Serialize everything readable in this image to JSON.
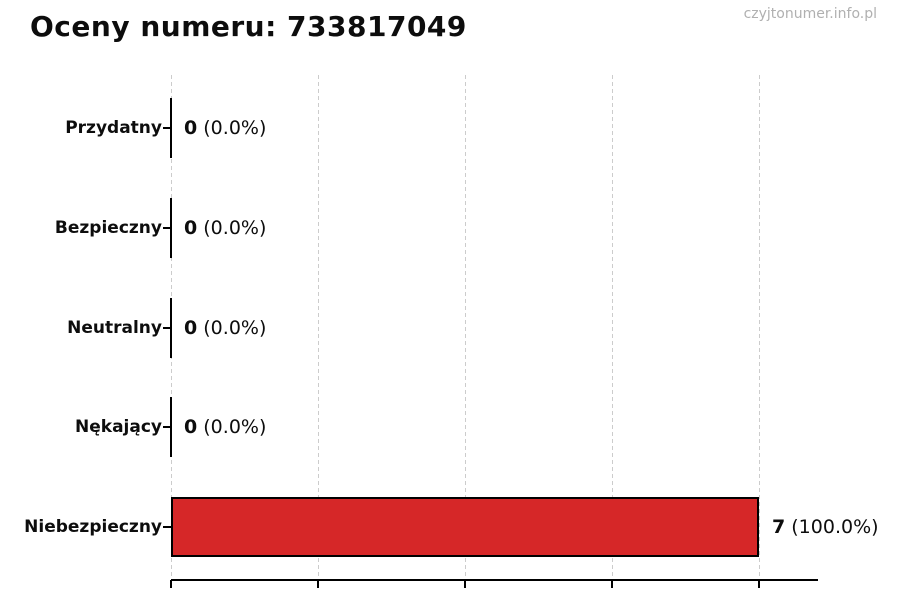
{
  "page": {
    "watermark": "czyjtonumer.info.pl"
  },
  "chart_data": {
    "type": "bar",
    "orientation": "horizontal",
    "title": "Oceny numeru: 733817049",
    "categories": [
      "Przydatny",
      "Bezpieczny",
      "Neutralny",
      "Nękający",
      "Niebezpieczny"
    ],
    "values": [
      0,
      0,
      0,
      0,
      7
    ],
    "percent_labels": [
      "0.0%",
      "0.0%",
      "0.0%",
      "0.0%",
      "100.0%"
    ],
    "value_label_format": "{value} ({percent})",
    "xlabel": "",
    "ylabel": "",
    "xlim": [
      0,
      7.7
    ],
    "x_axis": {
      "ticks_count": 5,
      "tick_labels_visible": false
    },
    "grid": {
      "axis": "x",
      "style": "dashed",
      "color": "#cccccc"
    },
    "legend": "none",
    "colors": {
      "bar_fill": "#d62728",
      "bar_edge": "#000000",
      "axis": "#000000",
      "text": "#0d0d0d",
      "watermark": "#b0b0b0"
    }
  }
}
